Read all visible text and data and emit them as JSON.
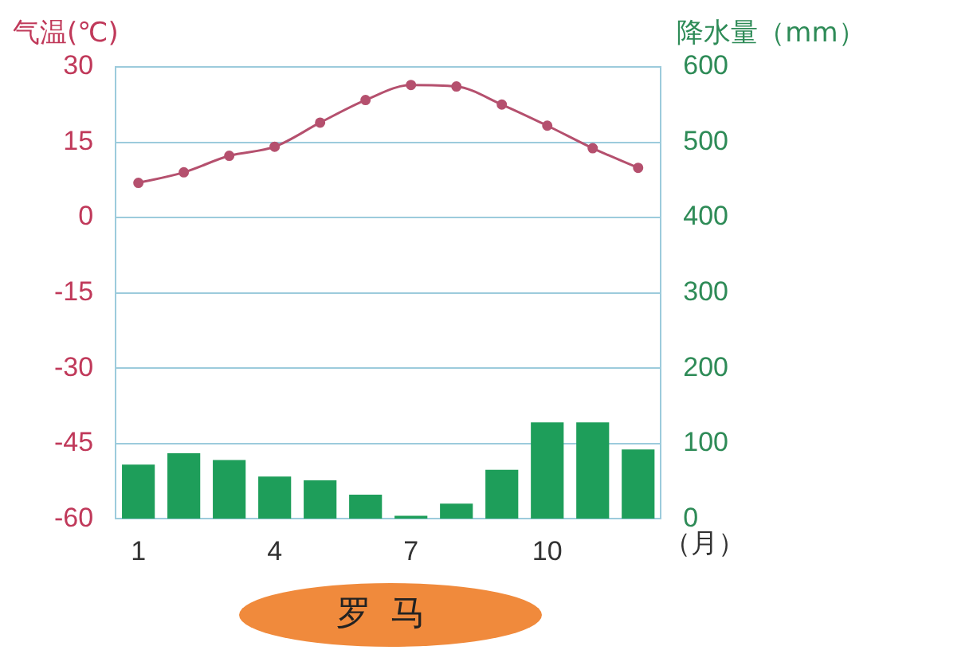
{
  "chart_data": {
    "type": "bar",
    "title": "罗马",
    "xlabel": "（月）",
    "ylabel": "气温(℃)",
    "y2label": "降水量（mm）",
    "categories": [
      "1",
      null,
      null,
      "4",
      null,
      null,
      "7",
      null,
      null,
      "10",
      null,
      null
    ],
    "series": [
      {
        "type": "line",
        "color": "#b5506e",
        "axis": "y",
        "values": [
          6.9,
          9,
          12.3,
          14.1,
          18.9,
          23.4,
          26.4,
          26.1,
          22.5,
          18.3,
          13.8,
          9.9
        ]
      },
      {
        "color": "#1e9e5a",
        "axis": "y2",
        "values": [
          72,
          87,
          78,
          56,
          51,
          32,
          4,
          20,
          65,
          128,
          128,
          92
        ]
      }
    ],
    "ylim": [
      -60,
      30
    ],
    "yticks": [
      -60,
      -45,
      -30,
      -15,
      0,
      15,
      30
    ],
    "y2lim": [
      0,
      600
    ],
    "y2ticks": [
      0,
      100,
      200,
      300,
      400,
      500,
      600
    ],
    "grid": "y",
    "legend": false,
    "marker": "circle",
    "line_style": "solid"
  }
}
